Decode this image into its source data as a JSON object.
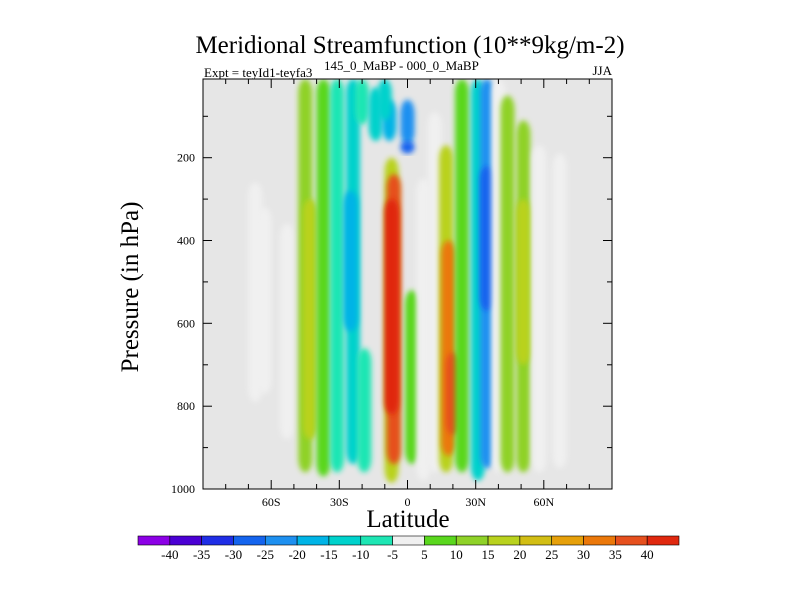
{
  "chart_data": {
    "type": "heatmap",
    "title": "Meridional Streamfunction (10**9kg/m-2)",
    "subtitle_left": "Expt = teyId1-teyfa3",
    "subtitle_superscript": "145_0_MaBP - 000_0_MaBP",
    "season": "JJA",
    "xlabel": "Latitude",
    "ylabel": "Pressure (in hPa)",
    "x_ticks": [
      {
        "value": -60,
        "label": "60S"
      },
      {
        "value": -30,
        "label": "30S"
      },
      {
        "value": 0,
        "label": "0"
      },
      {
        "value": 30,
        "label": "30N"
      },
      {
        "value": 60,
        "label": "60N"
      }
    ],
    "y_ticks": [
      {
        "value": 200,
        "label": "200"
      },
      {
        "value": 400,
        "label": "400"
      },
      {
        "value": 600,
        "label": "600"
      },
      {
        "value": 800,
        "label": "800"
      },
      {
        "value": 1000,
        "label": "1000"
      }
    ],
    "xlim": [
      -90,
      90
    ],
    "ylim": [
      1000,
      10
    ],
    "colorbar": {
      "levels": [
        -40,
        -35,
        -30,
        -25,
        -20,
        -15,
        -10,
        -5,
        5,
        10,
        15,
        20,
        25,
        30,
        35,
        40
      ],
      "labels": [
        "-40",
        "-35",
        "-30",
        "-25",
        "-20",
        "-15",
        "-10",
        "-5",
        "5",
        "10",
        "15",
        "20",
        "25",
        "30",
        "35",
        "40"
      ],
      "colors": [
        "#8c00e6",
        "#4b00d4",
        "#1f2ee6",
        "#1464ee",
        "#1e90f0",
        "#00b4e6",
        "#00d2cc",
        "#1ee6b4",
        "#f0f0f0",
        "#5ad71e",
        "#8fd228",
        "#b9d21e",
        "#d2be14",
        "#e6a00a",
        "#eb780a",
        "#e6501e",
        "#e0280f"
      ]
    },
    "background_color": "#e6e6e6",
    "features": [
      {
        "lat": -67,
        "p_top": 260,
        "p_bot": 790,
        "value": -3
      },
      {
        "lat": -63,
        "p_top": 320,
        "p_bot": 770,
        "value": -2
      },
      {
        "lat": -53,
        "p_top": 360,
        "p_bot": 880,
        "value": -2
      },
      {
        "lat": -45,
        "p_top": 10,
        "p_bot": 960,
        "value": 10
      },
      {
        "lat": -43,
        "p_top": 300,
        "p_bot": 880,
        "value": 18
      },
      {
        "lat": -37,
        "p_top": 10,
        "p_bot": 970,
        "value": 5
      },
      {
        "lat": -31,
        "p_top": 10,
        "p_bot": 960,
        "value": -8
      },
      {
        "lat": -24,
        "p_top": 10,
        "p_bot": 940,
        "value": -15
      },
      {
        "lat": -25,
        "p_top": 280,
        "p_bot": 620,
        "value": -20
      },
      {
        "lat": -20,
        "p_top": 10,
        "p_bot": 120,
        "value": -10
      },
      {
        "lat": -19,
        "p_top": 660,
        "p_bot": 960,
        "value": -8
      },
      {
        "lat": -14,
        "p_top": 30,
        "p_bot": 160,
        "value": -15
      },
      {
        "lat": -8,
        "p_top": 60,
        "p_bot": 160,
        "value": -20
      },
      {
        "lat": 0,
        "p_top": 60,
        "p_bot": 170,
        "value": -25
      },
      {
        "lat": 0,
        "p_top": 160,
        "p_bot": 190,
        "value": -30
      },
      {
        "lat": -10,
        "p_top": 10,
        "p_bot": 110,
        "value": -12
      },
      {
        "lat": -7,
        "p_top": 200,
        "p_bot": 985,
        "value": 15
      },
      {
        "lat": -6,
        "p_top": 240,
        "p_bot": 940,
        "value": 35
      },
      {
        "lat": -7,
        "p_top": 300,
        "p_bot": 820,
        "value": 40
      },
      {
        "lat": 2,
        "p_top": 520,
        "p_bot": 940,
        "value": 5
      },
      {
        "lat": 7,
        "p_top": 250,
        "p_bot": 980,
        "value": -5
      },
      {
        "lat": 12,
        "p_top": 90,
        "p_bot": 960,
        "value": -3
      },
      {
        "lat": 17,
        "p_top": 170,
        "p_bot": 960,
        "value": 15
      },
      {
        "lat": 18,
        "p_top": 400,
        "p_bot": 920,
        "value": 30
      },
      {
        "lat": 20,
        "p_top": 670,
        "p_bot": 870,
        "value": 35
      },
      {
        "lat": 24,
        "p_top": 10,
        "p_bot": 960,
        "value": 8
      },
      {
        "lat": 31,
        "p_top": 10,
        "p_bot": 980,
        "value": -15
      },
      {
        "lat": 35,
        "p_top": 10,
        "p_bot": 950,
        "value": -25
      },
      {
        "lat": 35,
        "p_top": 220,
        "p_bot": 570,
        "value": -30
      },
      {
        "lat": 40,
        "p_top": 10,
        "p_bot": 960,
        "value": -5
      },
      {
        "lat": 44,
        "p_top": 50,
        "p_bot": 960,
        "value": 10
      },
      {
        "lat": 51,
        "p_top": 110,
        "p_bot": 960,
        "value": 10
      },
      {
        "lat": 51,
        "p_top": 300,
        "p_bot": 700,
        "value": 18
      },
      {
        "lat": 58,
        "p_top": 170,
        "p_bot": 960,
        "value": 3
      },
      {
        "lat": 67,
        "p_top": 190,
        "p_bot": 950,
        "value": -2
      }
    ]
  }
}
